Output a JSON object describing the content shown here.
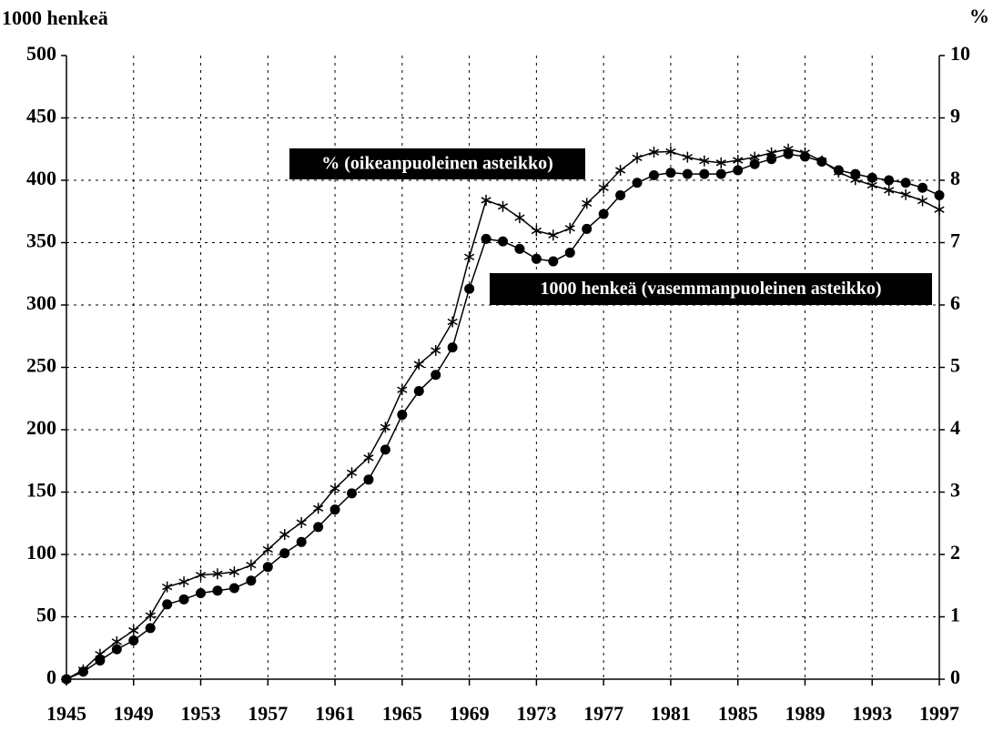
{
  "chart_data": {
    "type": "line",
    "y_label": "1000 henkeä",
    "y2_label": "%",
    "x": [
      1945,
      1946,
      1947,
      1948,
      1949,
      1950,
      1951,
      1952,
      1953,
      1954,
      1955,
      1956,
      1957,
      1958,
      1959,
      1960,
      1961,
      1962,
      1963,
      1964,
      1965,
      1966,
      1967,
      1968,
      1969,
      1970,
      1971,
      1972,
      1973,
      1974,
      1975,
      1976,
      1977,
      1978,
      1979,
      1980,
      1981,
      1982,
      1983,
      1984,
      1985,
      1986,
      1987,
      1988,
      1989,
      1990,
      1991,
      1992,
      1993,
      1994,
      1995,
      1996,
      1997
    ],
    "series": [
      {
        "name": "1000 henkeä (vasemmanpuoleinen asteikko)",
        "color": "#000000",
        "marker": "circle",
        "values": [
          0,
          6,
          15,
          24,
          31,
          41,
          60,
          64,
          69,
          71,
          73,
          79,
          90,
          101,
          110,
          122,
          136,
          149,
          160,
          184,
          212,
          231,
          244,
          266,
          313,
          353,
          351,
          345,
          337,
          335,
          342,
          361,
          373,
          388,
          398,
          404,
          406,
          405,
          405,
          405,
          408,
          413,
          417,
          421,
          419,
          415,
          408,
          405,
          402,
          400,
          398,
          394,
          388
        ]
      },
      {
        "name": "% (oikeanpuoleinen asteikko)",
        "color": "#000000",
        "marker": "asterisk",
        "axis": "y2",
        "values": [
          0,
          0.15,
          0.4,
          0.6,
          0.78,
          1.02,
          1.48,
          1.56,
          1.67,
          1.69,
          1.72,
          1.83,
          2.08,
          2.32,
          2.51,
          2.74,
          3.06,
          3.31,
          3.55,
          4.04,
          4.64,
          5.05,
          5.27,
          5.73,
          6.77,
          7.68,
          7.58,
          7.4,
          7.19,
          7.12,
          7.23,
          7.63,
          7.88,
          8.16,
          8.36,
          8.45,
          8.46,
          8.37,
          8.31,
          8.28,
          8.32,
          8.37,
          8.44,
          8.5,
          8.44,
          8.31,
          8.13,
          8.01,
          7.92,
          7.84,
          7.77,
          7.67,
          7.53
        ]
      }
    ],
    "xlim": [
      1945,
      1997
    ],
    "xticks": [
      1945,
      1949,
      1953,
      1957,
      1961,
      1965,
      1969,
      1973,
      1977,
      1981,
      1985,
      1989,
      1993,
      1997
    ],
    "ylim": [
      0,
      500
    ],
    "yticks": [
      0,
      50,
      100,
      150,
      200,
      250,
      300,
      350,
      400,
      450,
      500
    ],
    "y2lim": [
      0,
      10
    ],
    "y2ticks": [
      0,
      1,
      2,
      3,
      4,
      5,
      6,
      7,
      8,
      9,
      10
    ],
    "grid": true
  }
}
